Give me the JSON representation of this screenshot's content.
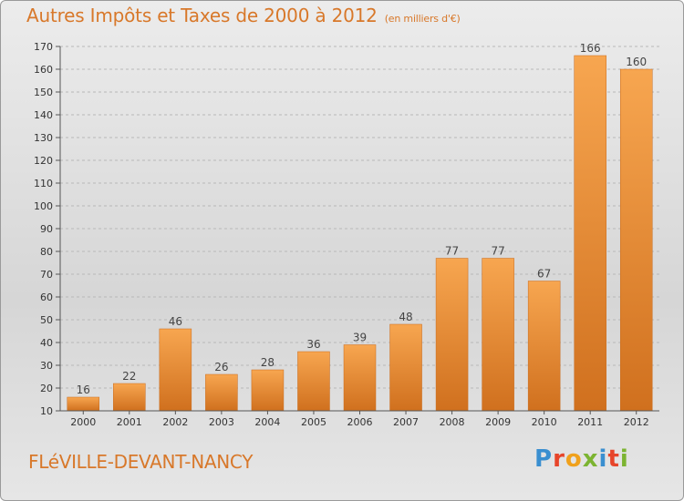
{
  "title": "Autres Impôts et Taxes de 2000 à 2012",
  "subtitle": "(en milliers d'€)",
  "town": "FLéVILLE-DEVANT-NANCY",
  "logo": {
    "p": "P",
    "r": "r",
    "o": "o",
    "x": "x",
    "i1": "i",
    "t": "t",
    "i2": "i"
  },
  "colors": {
    "bar_light": "#f6a24c",
    "bar_dark": "#d4721f",
    "text_accent": "#d8782a"
  },
  "chart_data": {
    "type": "bar",
    "categories": [
      "2000",
      "2001",
      "2002",
      "2003",
      "2004",
      "2005",
      "2006",
      "2007",
      "2008",
      "2009",
      "2010",
      "2011",
      "2012"
    ],
    "values": [
      16,
      22,
      46,
      26,
      28,
      36,
      39,
      48,
      77,
      77,
      67,
      166,
      160
    ],
    "ylim": [
      10,
      170
    ],
    "yticks": [
      10,
      20,
      30,
      40,
      50,
      60,
      70,
      80,
      90,
      100,
      110,
      120,
      130,
      140,
      150,
      160,
      170
    ],
    "grid": "horizontal dashed",
    "title": "Autres Impôts et Taxes de 2000 à 2012",
    "subtitle": "(en milliers d'€)"
  }
}
